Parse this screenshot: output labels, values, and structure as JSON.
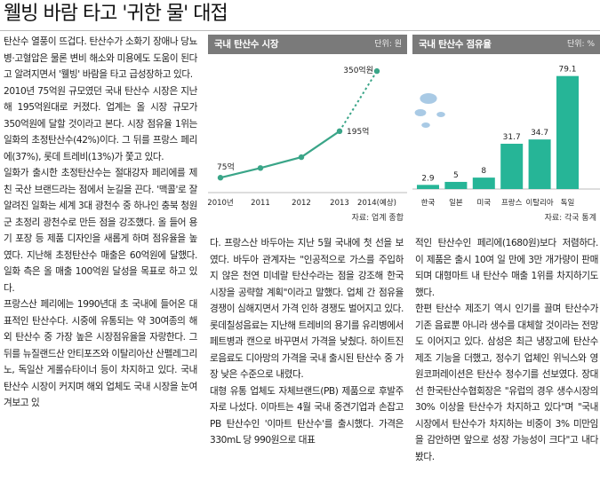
{
  "headline": "웰빙 바람 타고 '귀한 물' 대접",
  "col1": [
    "탄산수 열풍이 뜨겁다. 탄산수가 소화기 장애나 당뇨병·고혈압은 물론 변비 해소와 미용에도 도움이 된다고 알려지면서 '웰빙' 바람을 타고 급성장하고 있다.",
    "2010년 75억원 규모였던 국내 탄산수 시장은 지난해 195억원대로 커졌다. 업계는 올 시장 규모가 350억원에 달할 것이라고 본다. 시장 점유율 1위는 일화의 초정탄산수(42%)이다. 그 뒤를 프랑스 페리에(37%), 롯데 트레비(13%)가 쫓고 있다.",
    "일화가 출시한 초정탄산수는 절대강자 페리에를 제친 국산 브랜드라는 점에서 눈길을 끈다. '맥콜'로 잘 알려진 일화는 세계 3대 광천수 중 하나인 충북 청원군 초정리 광천수로 만든 점을 강조했다. 올 들어 용기 포장 등 제품 디자인을 새롭게 하며 점유율을 높였다. 지난해 초정탄산수 매출은 60억원에 달했다. 일화 측은 올 매출 100억원 달성을 목표로 하고 있다.",
    "프랑스산 페리에는 1990년대 초 국내에 들어온 대표적인 탄산수다. 시중에 유통되는 약 30여종의 해외 탄산수 중 가장 높은 시장점유율을 자랑한다. 그 뒤를 뉴질랜드산 안티포즈와 이탈리아산 산펠레그리노, 독일산 게롤슈타이너 등이 차지하고 있다. 국내 탄산수 시장이 커지며 해외 업체도 국내 시장을 눈여겨보고 있"
  ],
  "col2": [
    "다. 프랑스산 바두아는 지난 5월 국내에 첫 선을 보였다. 바두아 관계자는 \"인공적으로 가스를 주입하지 않은 천연 미네랄 탄산수라는 점을 강조해 한국 시장을 공략할 계획\"이라고 말했다. 업체 간 점유율 경쟁이 심해지면서 가격 인하 경쟁도 벌어지고 있다. 롯데칠성음료는 지난해 트레비의 용기를 유리병에서 페트병과 캔으로 바꾸면서 가격을 낮췄다. 하이트진로음료도 디아망의 가격을 국내 출시된 탄산수 중 가장 낮은 수준으로 내렸다.",
    "대형 유통 업체도 자체브랜드(PB) 제품으로 후발주자로 나섰다. 이마트는 4월 국내 중견기업과 손잡고 PB 탄산수인 '이마트 탄산수'를 출시했다. 가격은 330mL 당 990원으로 대표"
  ],
  "col3": [
    "적인 탄산수인 페리에(1680원)보다 저렴하다. 이 제품은 출시 10여 일 만에 3만 개가량이 판매되며 대형마트 내 탄산수 매출 1위를 차지하기도 했다.",
    "한편 탄산수 제조기 역시 인기를 끌며 탄산수가 기존 음료뿐 아니라 생수를 대체할 것이라는 전망도 이어지고 있다. 삼성은 최근 냉장고에 탄산수 제조 기능을 더했고, 정수기 업체인 위닉스와 영원코퍼레이션은 탄산수 정수기를 선보였다. 장대선 한국탄산수협회장은 \"유럽의 경우 생수시장의 30% 이상을 탄산수가 차지하고 있다\"며 \"국내 시장에서 탄산수가 차지하는 비중이 3% 미만임을 감안하면 앞으로 성장 가능성이 크다\"고 내다봤다."
  ],
  "chart_data": [
    {
      "type": "line",
      "title": "국내 탄산수 시장",
      "unit": "단위: 원",
      "source": "자료: 업계 종합",
      "categories": [
        "2010년",
        "2011",
        "2012",
        "2013",
        "2014(예상)"
      ],
      "values": [
        75,
        null,
        null,
        195,
        350
      ],
      "trend": [
        75,
        100,
        128,
        195,
        350
      ],
      "value_labels": [
        "75억",
        "",
        "",
        "195억",
        "350억원"
      ],
      "ylim": [
        0,
        380
      ],
      "colors": {
        "line": "#3aa588",
        "header": "#7a7a7a"
      }
    },
    {
      "type": "bar",
      "title": "국내 탄산수 점유율",
      "unit": "단위: %",
      "source": "자료: 각국 통계",
      "categories": [
        "한국",
        "일본",
        "미국",
        "프랑스",
        "이탈리아",
        "독일"
      ],
      "values": [
        2.9,
        5,
        8,
        31.7,
        34.7,
        79.1
      ],
      "value_labels": [
        "2.9",
        "5",
        "8",
        "31.7",
        "34.7",
        "79.1"
      ],
      "ylim": [
        0,
        82
      ],
      "colors": {
        "bar": "#26b597",
        "header": "#7a7a7a"
      }
    }
  ]
}
